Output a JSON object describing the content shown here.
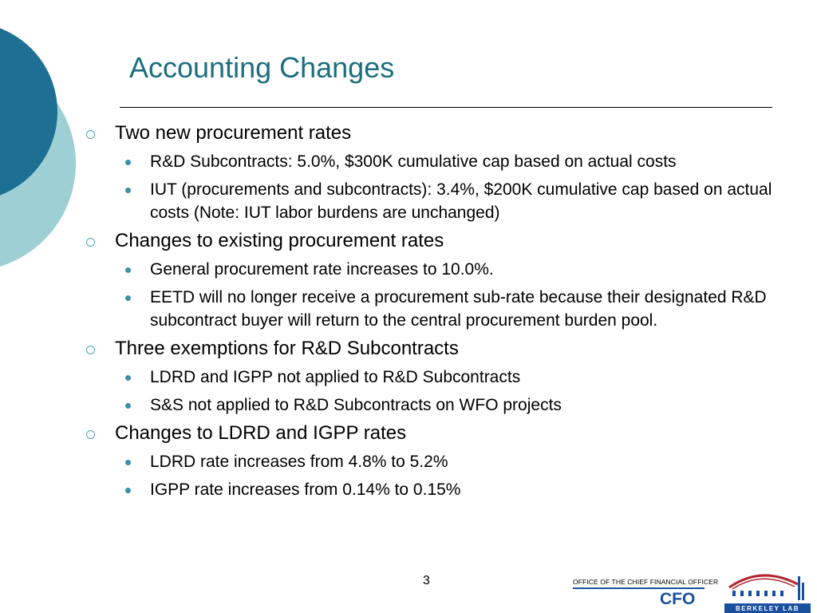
{
  "slide": {
    "title": "Accounting Changes",
    "sections": [
      {
        "text": "Two new procurement rates",
        "items": [
          "R&D Subcontracts: 5.0%, $300K cumulative cap based on actual costs",
          "IUT (procurements and subcontracts): 3.4%, $200K cumulative cap based on actual costs (Note: IUT labor burdens are unchanged)"
        ]
      },
      {
        "text": "Changes to existing procurement rates",
        "items": [
          "General procurement rate increases to 10.0%.",
          "EETD will no longer receive a procurement sub-rate because their designated R&D subcontract buyer will return to the central procurement burden pool."
        ]
      },
      {
        "text": "Three exemptions for R&D Subcontracts",
        "items": [
          "LDRD and IGPP not applied to R&D Subcontracts",
          "S&S not applied to R&D Subcontracts on WFO projects"
        ]
      },
      {
        "text": "Changes to LDRD and IGPP rates",
        "items": [
          "LDRD rate increases from 4.8% to 5.2%",
          "IGPP rate increases from 0.14% to 0.15%"
        ]
      }
    ],
    "page_number": "3"
  },
  "footer": {
    "office": "OFFICE OF THE CHIEF FINANCIAL OFFICER",
    "cfo": "CFO",
    "logo_text": "BERKELEY LAB"
  },
  "colors": {
    "title": "#1a6e7e",
    "deco_dark": "#1d6f94",
    "deco_light": "#9ecfd4",
    "bullet": "#3b8fa8",
    "footer_blue": "#1a4fa0"
  },
  "icons": {
    "level1_bullet": "hollow-circle",
    "level2_bullet": "filled-dot"
  }
}
